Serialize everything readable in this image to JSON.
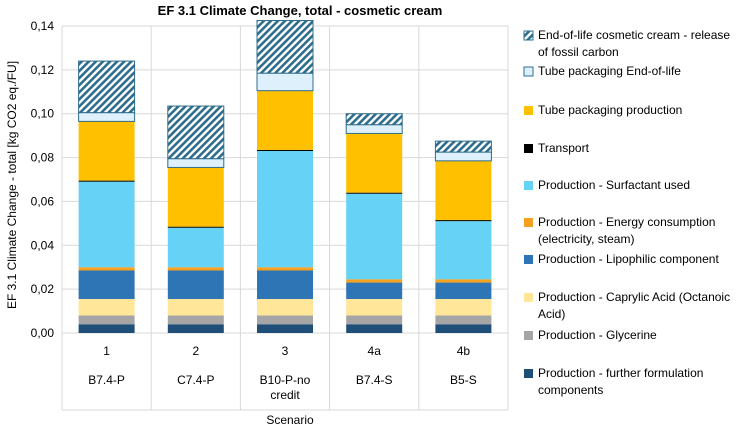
{
  "chart_data": {
    "type": "stacked-bar",
    "title": "EF 3.1 Climate Change, total - cosmetic cream",
    "xlabel": "Scenario",
    "ylabel": "EF 3.1 Climate Change - total [kg CO2 eq./FU]",
    "ylim": [
      0,
      0.14
    ],
    "yticks": [
      "0,00",
      "0,02",
      "0,04",
      "0,06",
      "0,08",
      "0,10",
      "0,12",
      "0,14"
    ],
    "grid": true,
    "legend_position": "right",
    "categories": [
      {
        "top": "1",
        "bottom": "B7.4-P"
      },
      {
        "top": "2",
        "bottom": "C7.4-P"
      },
      {
        "top": "3",
        "bottom": "B10-P-no credit"
      },
      {
        "top": "4a",
        "bottom": "B7.4-S"
      },
      {
        "top": "4b",
        "bottom": "B5-S"
      }
    ],
    "series": [
      {
        "name": "Production - further formulation components",
        "color": "#1f4e79",
        "pattern": "solid",
        "values": [
          0.004,
          0.004,
          0.004,
          0.004,
          0.004
        ]
      },
      {
        "name": "Production - Glycerine",
        "color": "#a5a5a5",
        "pattern": "solid",
        "values": [
          0.004,
          0.004,
          0.004,
          0.004,
          0.004
        ]
      },
      {
        "name": "Production - Caprylic Acid (Octanoic Acid)",
        "color": "#ffe699",
        "pattern": "solid",
        "values": [
          0.0075,
          0.0075,
          0.0075,
          0.0075,
          0.0075
        ]
      },
      {
        "name": "Production - Lipophilic component",
        "color": "#2e75b6",
        "pattern": "solid",
        "values": [
          0.013,
          0.013,
          0.013,
          0.0075,
          0.0075
        ]
      },
      {
        "name": "Production - Energy consumption (electricity, steam)",
        "color": "#f4a020",
        "pattern": "solid",
        "values": [
          0.0015,
          0.0015,
          0.0015,
          0.0015,
          0.0015
        ]
      },
      {
        "name": "Production - Surfactant used",
        "color": "#66d2f5",
        "pattern": "solid",
        "values": [
          0.039,
          0.018,
          0.053,
          0.039,
          0.0265
        ]
      },
      {
        "name": "Transport",
        "color": "#000000",
        "pattern": "solid",
        "values": [
          0.0005,
          0.0005,
          0.0005,
          0.0005,
          0.0005
        ]
      },
      {
        "name": "Tube packaging production",
        "color": "#ffc000",
        "pattern": "solid",
        "values": [
          0.027,
          0.027,
          0.027,
          0.027,
          0.027
        ]
      },
      {
        "name": "Tube packaging End-of-life",
        "color": "#ddf0fb",
        "pattern": "solid",
        "values": [
          0.004,
          0.004,
          0.008,
          0.004,
          0.004
        ]
      },
      {
        "name": "End-of-life cosmetic cream - release of fossil carbon",
        "color": "#2f6d8c",
        "pattern": "hatch",
        "values": [
          0.0235,
          0.024,
          0.024,
          0.005,
          0.005
        ]
      }
    ],
    "legend_lines": [
      [
        "End-of-life cosmetic cream - release",
        "of fossil carbon"
      ],
      [
        "Tube packaging End-of-life"
      ],
      [
        "Tube packaging production"
      ],
      [
        "Transport"
      ],
      [
        "Production - Surfactant used"
      ],
      [
        "Production - Energy consumption",
        "(electricity, steam)"
      ],
      [
        "Production - Lipophilic component"
      ],
      [
        "Production - Caprylic Acid (Octanoic",
        "Acid)"
      ],
      [
        "Production - Glycerine"
      ],
      [
        "Production - further formulation",
        "components"
      ]
    ]
  }
}
